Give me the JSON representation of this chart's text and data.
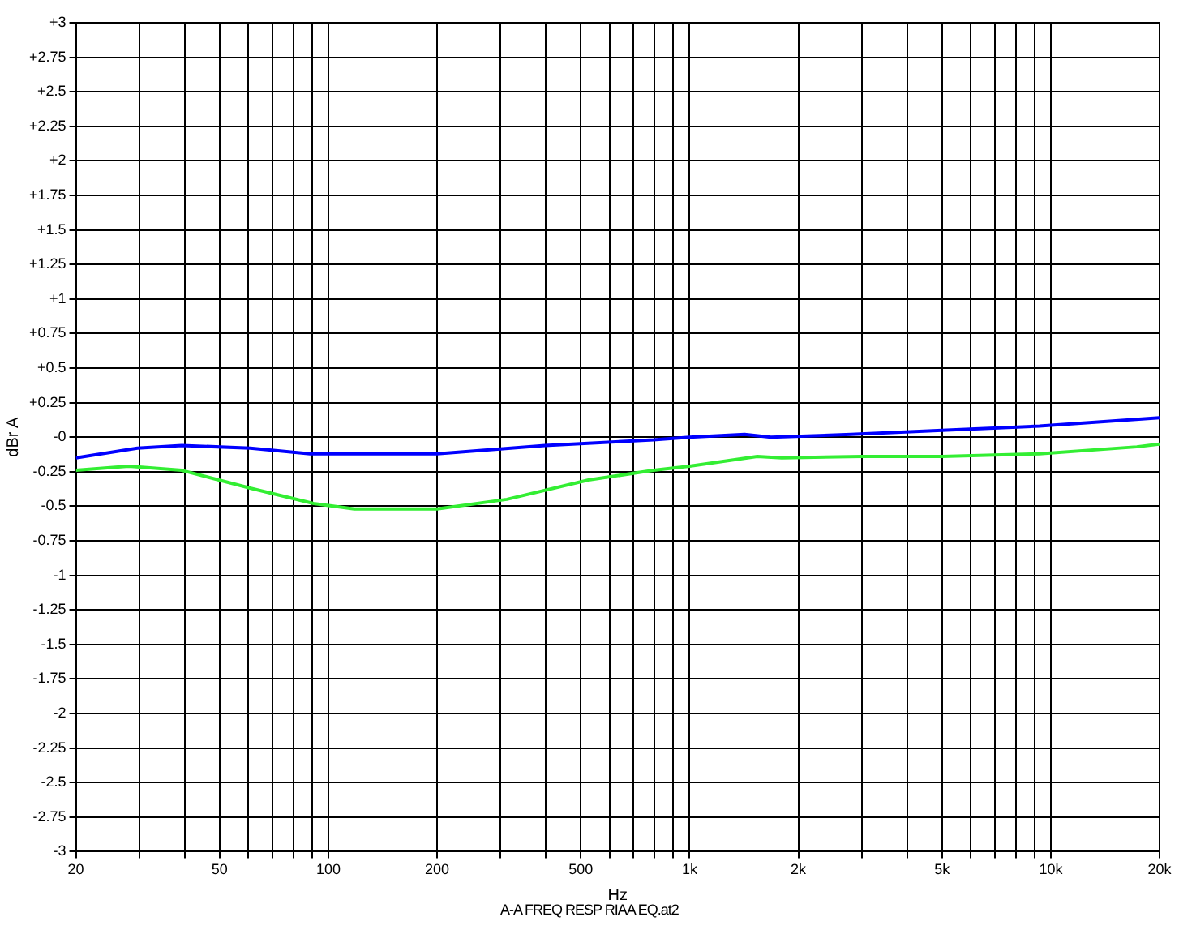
{
  "chart_data": {
    "type": "line",
    "xlabel": "Hz",
    "ylabel": "dBr A",
    "log": "x",
    "grid": true,
    "legend": false,
    "marker": "none",
    "line_style": "solid",
    "annotations": [
      "A-A FREQ RESP RIAA EQ.at2"
    ],
    "xlim": [
      20,
      20000
    ],
    "xticks": [
      20,
      {
        "value": 30,
        "label": null
      },
      {
        "value": 40,
        "label": null
      },
      50,
      {
        "value": 60,
        "label": null
      },
      {
        "value": 70,
        "label": null
      },
      {
        "value": 80,
        "label": null
      },
      {
        "value": 90,
        "label": null
      },
      100,
      200,
      {
        "value": 300,
        "label": null
      },
      {
        "value": 400,
        "label": null
      },
      500,
      {
        "value": 600,
        "label": null
      },
      {
        "value": 700,
        "label": null
      },
      {
        "value": 800,
        "label": null
      },
      {
        "value": 900,
        "label": null
      },
      {
        "value": 1000,
        "label": "1k"
      },
      {
        "value": 2000,
        "label": "2k"
      },
      {
        "value": 3000,
        "label": null
      },
      {
        "value": 4000,
        "label": null
      },
      {
        "value": 5000,
        "label": "5k"
      },
      {
        "value": 6000,
        "label": null
      },
      {
        "value": 7000,
        "label": null
      },
      {
        "value": 8000,
        "label": null
      },
      {
        "value": 9000,
        "label": null
      },
      {
        "value": 10000,
        "label": "10k"
      },
      {
        "value": 20000,
        "label": "20k"
      }
    ],
    "ylim": [
      -3,
      3
    ],
    "yticks": [
      -3,
      -2.75,
      -2.5,
      -2.25,
      -2,
      -1.75,
      -1.5,
      -1.25,
      -1,
      -0.75,
      -0.5,
      -0.25,
      {
        "value": 0,
        "label": "-0"
      },
      {
        "value": 0.25,
        "label": "+0.25"
      },
      {
        "value": 0.5,
        "label": "+0.5"
      },
      {
        "value": 0.75,
        "label": "+0.75"
      },
      {
        "value": 1,
        "label": "+1"
      },
      {
        "value": 1.25,
        "label": "+1.25"
      },
      {
        "value": 1.5,
        "label": "+1.5"
      },
      {
        "value": 1.75,
        "label": "+1.75"
      },
      {
        "value": 2,
        "label": "+2"
      },
      {
        "value": 2.25,
        "label": "+2.25"
      },
      {
        "value": 2.5,
        "label": "+2.5"
      },
      {
        "value": 2.75,
        "label": "+2.75"
      },
      {
        "value": 3,
        "label": "+3"
      }
    ],
    "series": [
      {
        "color": "#0000ff",
        "x": [
          20,
          29.6,
          39.3,
          60.8,
          89,
          200,
          398,
          795,
          1000,
          1420,
          1680,
          2800,
          5000,
          9300,
          20000
        ],
        "values": [
          -0.15,
          -0.08,
          -0.06,
          -0.08,
          -0.12,
          -0.12,
          -0.06,
          -0.02,
          0,
          0.02,
          0,
          0.02,
          0.05,
          0.08,
          0.14
        ]
      },
      {
        "color": "#33ee33",
        "x": [
          20,
          28,
          39.3,
          61,
          91,
          118,
          200,
          312,
          525,
          795,
          1000,
          1540,
          1800,
          3000,
          5000,
          9300,
          17300,
          20000
        ],
        "values": [
          -0.24,
          -0.21,
          -0.24,
          -0.37,
          -0.48,
          -0.52,
          -0.52,
          -0.45,
          -0.31,
          -0.24,
          -0.21,
          -0.14,
          -0.15,
          -0.14,
          -0.14,
          -0.12,
          -0.07,
          -0.05
        ]
      }
    ]
  }
}
